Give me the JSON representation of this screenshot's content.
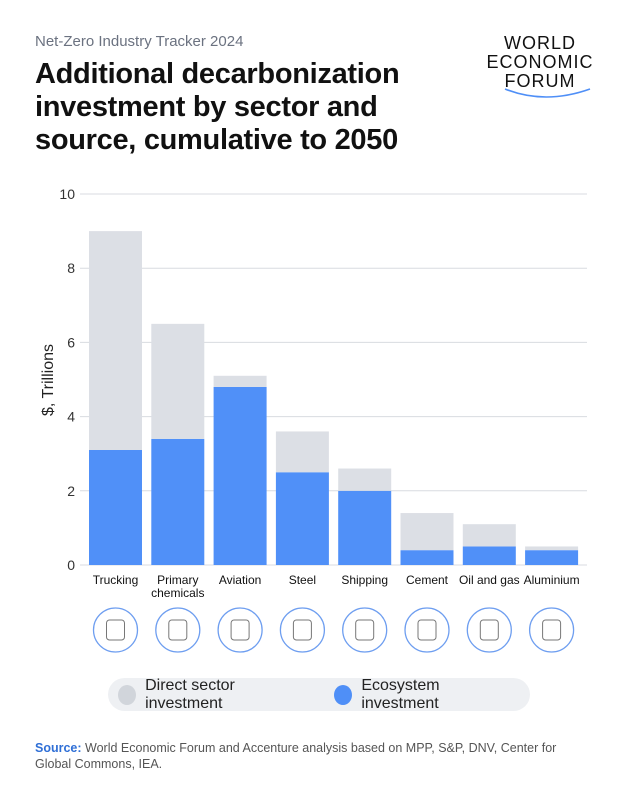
{
  "header": {
    "kicker": "Net-Zero Industry Tracker 2024",
    "title": "Additional decarbonization investment by sector and source, cumulative to 2050",
    "logo": [
      "WORLD",
      "ECONOMIC",
      "FORUM"
    ]
  },
  "chart_data": {
    "type": "bar",
    "stacked": true,
    "categories": [
      "Trucking",
      "Primary chemicals",
      "Aviation",
      "Steel",
      "Shipping",
      "Cement",
      "Oil and gas",
      "Aluminium"
    ],
    "category_label_lines": [
      [
        "Trucking"
      ],
      [
        "Primary",
        "chemicals"
      ],
      [
        "Aviation"
      ],
      [
        "Steel"
      ],
      [
        "Shipping"
      ],
      [
        "Cement"
      ],
      [
        "Oil and gas"
      ],
      [
        "Aluminium"
      ]
    ],
    "category_icons": [
      "truck-icon",
      "chemical-canister-icon",
      "airplane-tail-icon",
      "steel-beam-icon",
      "ship-icon",
      "cement-mixer-icon",
      "oil-barrel-icon",
      "aluminium-can-icon"
    ],
    "series": [
      {
        "name": "Ecosystem investment",
        "color": "#5090f8",
        "values": [
          3.1,
          3.4,
          4.8,
          2.5,
          2.0,
          0.4,
          0.5,
          0.4
        ]
      },
      {
        "name": "Direct sector investment",
        "color": "#dcdfe5",
        "values": [
          5.9,
          3.1,
          0.3,
          1.1,
          0.6,
          1.0,
          0.6,
          0.1
        ]
      }
    ],
    "totals": [
      9.0,
      6.5,
      5.1,
      3.6,
      2.6,
      1.4,
      1.1,
      0.5
    ],
    "ylabel": "$, Trillions",
    "ylim": [
      0,
      10
    ],
    "yticks": [
      0,
      2,
      4,
      6,
      8,
      10
    ],
    "grid": true,
    "legend_position": "bottom"
  },
  "legend": [
    {
      "label": "Direct sector investment",
      "color": "#d1d5db"
    },
    {
      "label": "Ecosystem investment",
      "color": "#4f8ff7"
    }
  ],
  "source": {
    "label": "Source:",
    "text": "World Economic Forum and Accenture analysis based on MPP, S&P, DNV, Center for Global Commons, IEA."
  }
}
